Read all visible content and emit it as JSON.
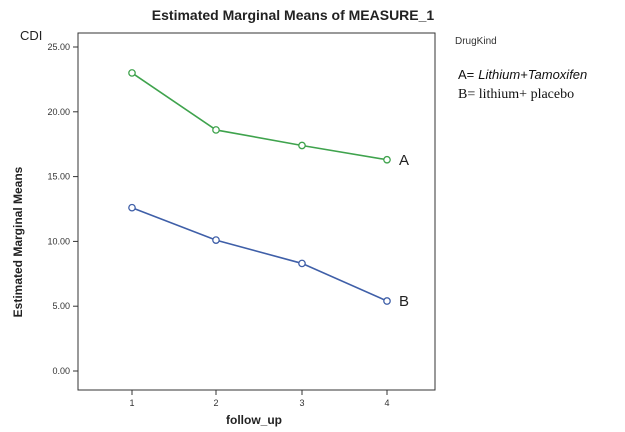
{
  "chart_data": {
    "type": "line",
    "title": "Estimated Marginal Means of MEASURE_1",
    "ylabel": "Estimated Marginal Means",
    "xlabel": "follow_up",
    "y_annotation": "CDI",
    "x": [
      1,
      2,
      3,
      4
    ],
    "x_tick_labels": [
      "1",
      "2",
      "3",
      "4"
    ],
    "y_tick_labels": [
      "0.00",
      "5.00",
      "10.00",
      "15.00",
      "20.00",
      "25.00"
    ],
    "ylim": [
      0,
      25
    ],
    "grid": false,
    "series": [
      {
        "name": "A",
        "color": "#3fa34d",
        "values": [
          23.0,
          18.6,
          17.4,
          16.3
        ]
      },
      {
        "name": "B",
        "color": "#3f5fa8",
        "values": [
          12.6,
          10.1,
          8.3,
          5.4
        ]
      }
    ],
    "legend": {
      "title": "DrugKind",
      "placement": "right",
      "a_prefix": "A=",
      "a_text": "Lithium+Tamoxifen",
      "b_text": "B=  lithium+ placebo"
    }
  }
}
